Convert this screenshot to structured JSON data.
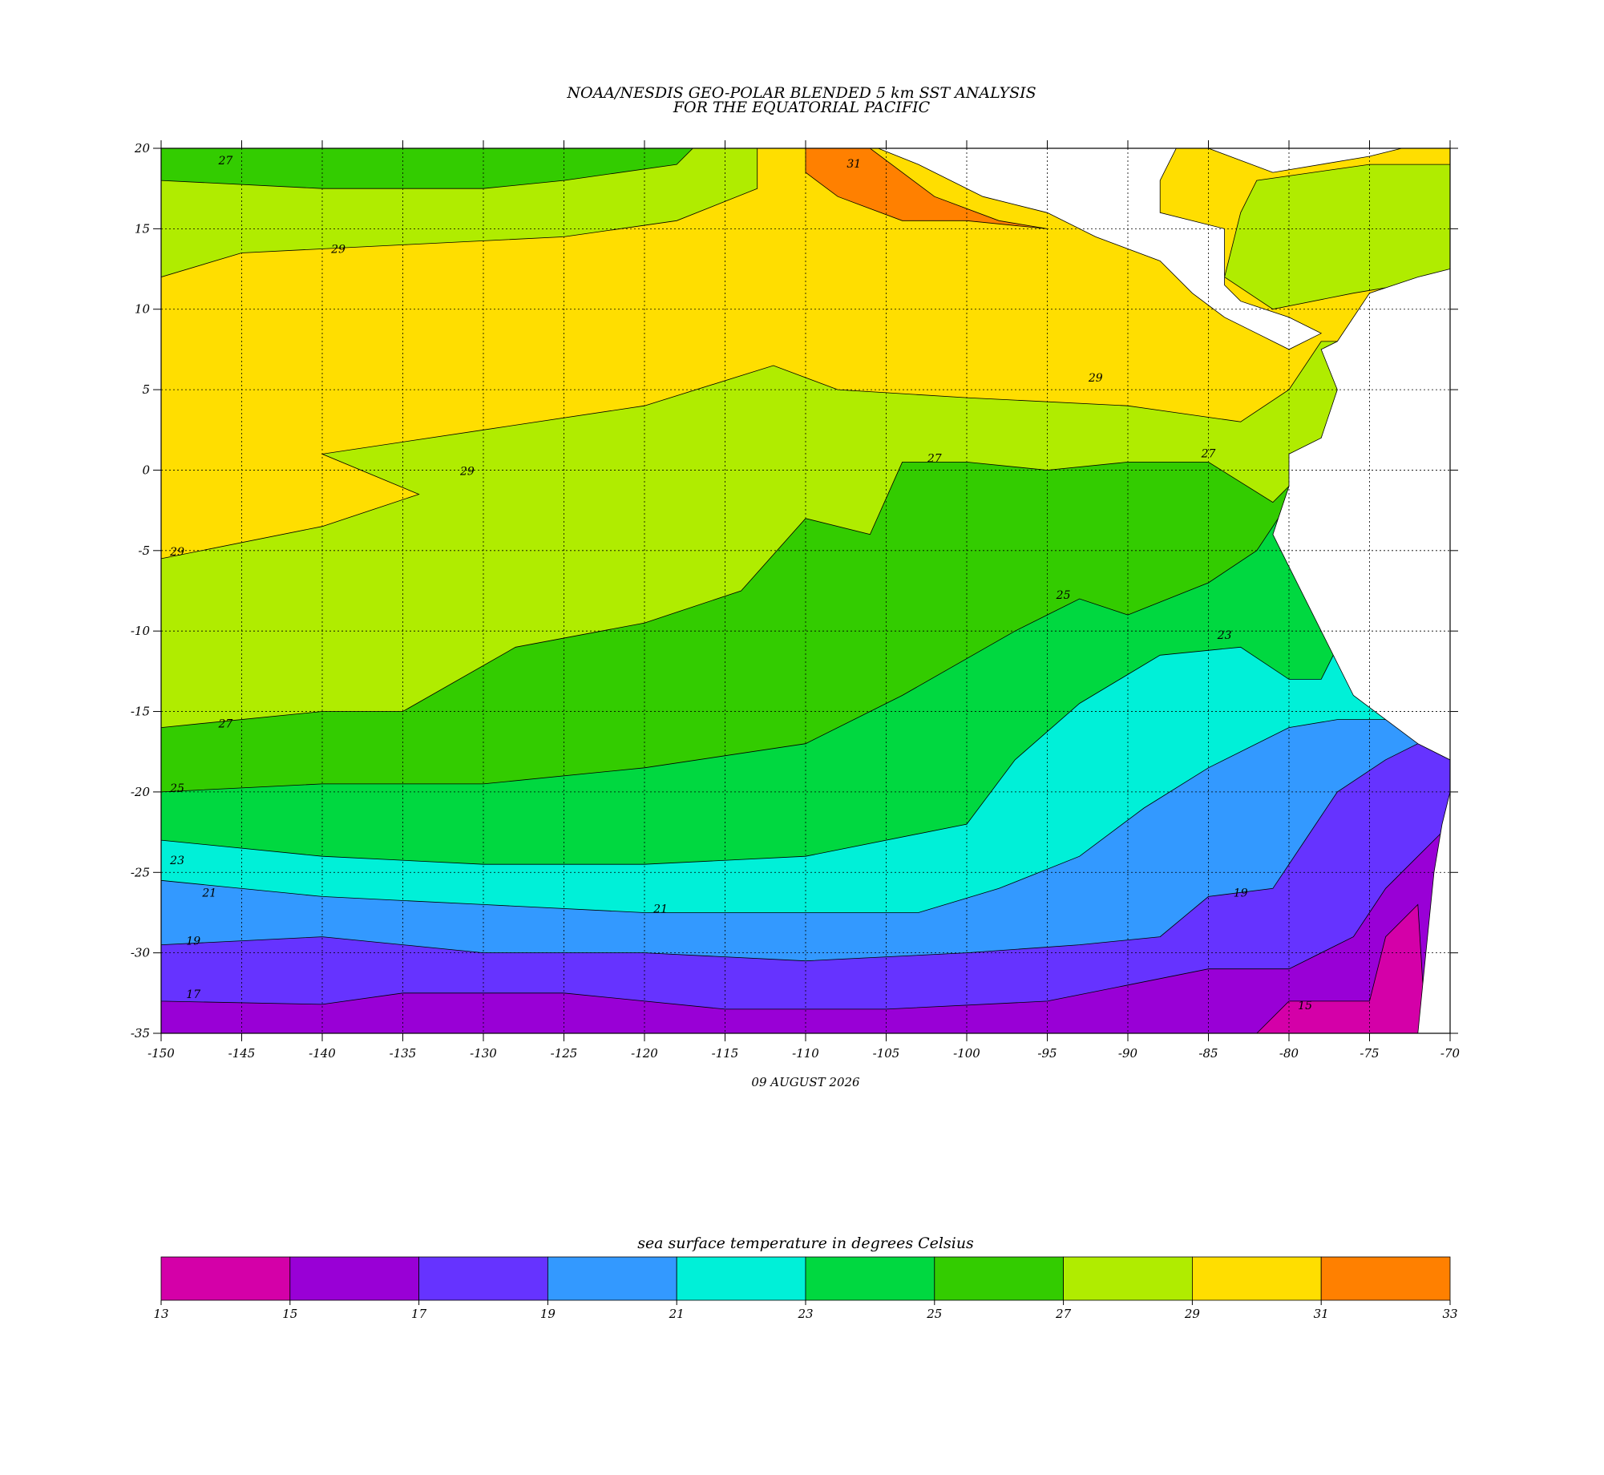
{
  "map": {
    "title": [
      "NOAA/NESDIS GEO-POLAR BLENDED 5 km SST ANALYSIS",
      "FOR THE EQUATORIAL PACIFIC"
    ],
    "date": "09 AUGUST 2026",
    "xlim": [
      -150,
      -70
    ],
    "ylim": [
      -35,
      20
    ],
    "xticks": [
      -150,
      -145,
      -140,
      -135,
      -130,
      -125,
      -120,
      -115,
      -110,
      -105,
      -100,
      -95,
      -90,
      -85,
      -80,
      -75,
      -70
    ],
    "yticks": [
      -35,
      -30,
      -25,
      -20,
      -15,
      -10,
      -5,
      0,
      5,
      10,
      15,
      20
    ],
    "grid": true,
    "colorbar": {
      "label": "sea surface temperature in degrees Celsius",
      "levels": [
        13,
        15,
        17,
        19,
        21,
        23,
        25,
        27,
        29,
        31,
        33
      ],
      "colors": [
        "#d400a8",
        "#9900d6",
        "#6633ff",
        "#3399ff",
        "#00f0d8",
        "#00d840",
        "#33cc00",
        "#b0ec00",
        "#ffde00",
        "#ff8000"
      ]
    },
    "contour_labels": [
      27,
      29,
      29,
      29,
      29,
      27,
      27,
      27,
      25,
      25,
      23,
      23,
      21,
      21,
      19,
      19,
      17,
      15,
      31
    ]
  }
}
